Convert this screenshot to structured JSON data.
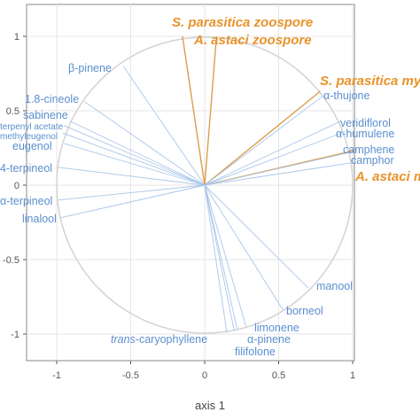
{
  "chart_data": {
    "type": "scatter",
    "subtype": "correlation-circle",
    "xlabel": "axis 1",
    "ylabel": "",
    "xlim": [
      -1.2,
      1.0
    ],
    "ylim": [
      -1.2,
      1.2
    ],
    "x_ticks": [
      -1,
      -0.5,
      0,
      0.5,
      1
    ],
    "y_ticks": [
      -1,
      -0.5,
      0,
      0.5,
      1
    ],
    "x_tick_labels": [
      "-1",
      "-0.5",
      "0",
      "0.5",
      "1"
    ],
    "y_tick_labels": [
      "-1",
      "-0.5",
      "0",
      "0.5",
      "1"
    ],
    "grid": true,
    "circle_radius": 1,
    "colors": {
      "compound": "#5b8fd0",
      "compound_line": "#a9c6ea",
      "organism": "#e8932c",
      "organism_line": "#d9a04a",
      "circle": "#d3d3d3",
      "grid": "#e6e6e6",
      "tick": "#555555",
      "border": "#888888"
    },
    "vectors": [
      {
        "label": "S. parasitica zoospore",
        "group": "organism",
        "x": -0.15,
        "y": 1.0
      },
      {
        "label": "A. astaci zoospore",
        "group": "organism",
        "x": 0.08,
        "y": 1.0
      },
      {
        "label": "S. parasitica my",
        "group": "organism",
        "x": 0.78,
        "y": 0.63
      },
      {
        "label": "A. astaci m",
        "group": "organism",
        "x": 1.0,
        "y": 0.23
      },
      {
        "label": "β-pinene",
        "group": "compound",
        "x": -0.55,
        "y": 0.8
      },
      {
        "label": "1.8-cineole",
        "group": "compound",
        "x": -0.81,
        "y": 0.56
      },
      {
        "label": "sabinene",
        "group": "compound",
        "x": -0.91,
        "y": 0.43
      },
      {
        "label": "terpenyl acetate",
        "group": "compound",
        "x": -0.95,
        "y": 0.4
      },
      {
        "label": "methyleugenol",
        "group": "compound",
        "x": -0.96,
        "y": 0.35
      },
      {
        "label": "eugenol",
        "group": "compound",
        "x": -0.95,
        "y": 0.28
      },
      {
        "label": "4-terpineol",
        "group": "compound",
        "x": -0.99,
        "y": 0.12
      },
      {
        "label": "α-terpineol",
        "group": "compound",
        "x": -0.99,
        "y": -0.1
      },
      {
        "label": "linalool",
        "group": "compound",
        "x": -0.98,
        "y": -0.22
      },
      {
        "label": "α-thujone",
        "group": "compound",
        "x": 0.8,
        "y": 0.6
      },
      {
        "label": "veridiflorol",
        "group": "compound",
        "x": 0.92,
        "y": 0.43
      },
      {
        "label": "α-humulene",
        "group": "compound",
        "x": 0.95,
        "y": 0.36
      },
      {
        "label": "camphene",
        "group": "compound",
        "x": 0.98,
        "y": 0.22
      },
      {
        "label": "camphor",
        "group": "compound",
        "x": 0.99,
        "y": 0.15
      },
      {
        "label": "manool",
        "group": "compound",
        "x": 0.7,
        "y": -0.69
      },
      {
        "label": "borneol",
        "group": "compound",
        "x": 0.53,
        "y": -0.84
      },
      {
        "label": "limonene",
        "group": "compound",
        "x": 0.28,
        "y": -0.95
      },
      {
        "label": "α-pinene",
        "group": "compound",
        "x": 0.22,
        "y": -0.97
      },
      {
        "label": "filifolone",
        "group": "compound",
        "x": 0.2,
        "y": -0.98
      },
      {
        "label": "trans-caryophyllene",
        "group": "compound",
        "x": 0.15,
        "y": -0.99
      }
    ]
  }
}
